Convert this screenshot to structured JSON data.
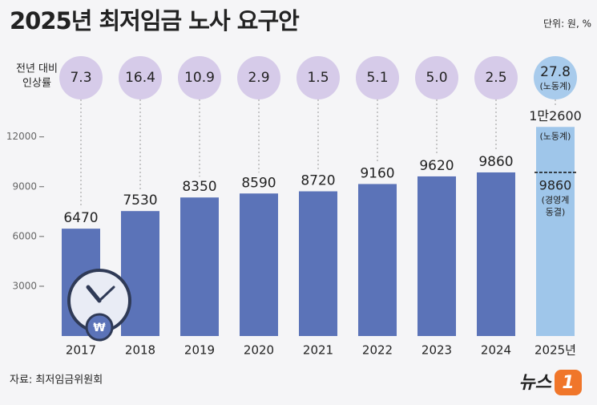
{
  "chart_data": {
    "type": "bar",
    "title": "2025년 최저임금 노사 요구안",
    "unit": "단위: 원, %",
    "rate_heading": [
      "전년 대비",
      "인상률"
    ],
    "categories": [
      "2017",
      "2018",
      "2019",
      "2020",
      "2021",
      "2022",
      "2023",
      "2024",
      "2025년"
    ],
    "values": [
      6470,
      7530,
      8350,
      8590,
      8720,
      9160,
      9620,
      9860,
      null
    ],
    "rates": [
      7.3,
      16.4,
      10.9,
      2.9,
      1.5,
      5.1,
      5.0,
      2.5,
      27.8
    ],
    "rate_labels": [
      "7.3",
      "16.4",
      "10.9",
      "2.9",
      "1.5",
      "5.1",
      "5.0",
      "2.5",
      "27.8"
    ],
    "rate_note": "(노동계)",
    "proposals": {
      "labor": {
        "value": 12600,
        "label": "1만2600",
        "note": "(노동계)"
      },
      "management": {
        "value": 9860,
        "label": "9860",
        "note": [
          "(경영계",
          "동결)"
        ]
      }
    },
    "ylim": [
      0,
      13000
    ],
    "yticks": [
      3000,
      6000,
      9000,
      12000
    ],
    "colors": {
      "bar": "#5b73b8",
      "proposal": "#9fc6ea",
      "circle": "#d6cbe9",
      "circle_last": "#a8cbec"
    },
    "source": "자료: 최저임금위원회",
    "logo": [
      "뉴스",
      "1"
    ]
  }
}
